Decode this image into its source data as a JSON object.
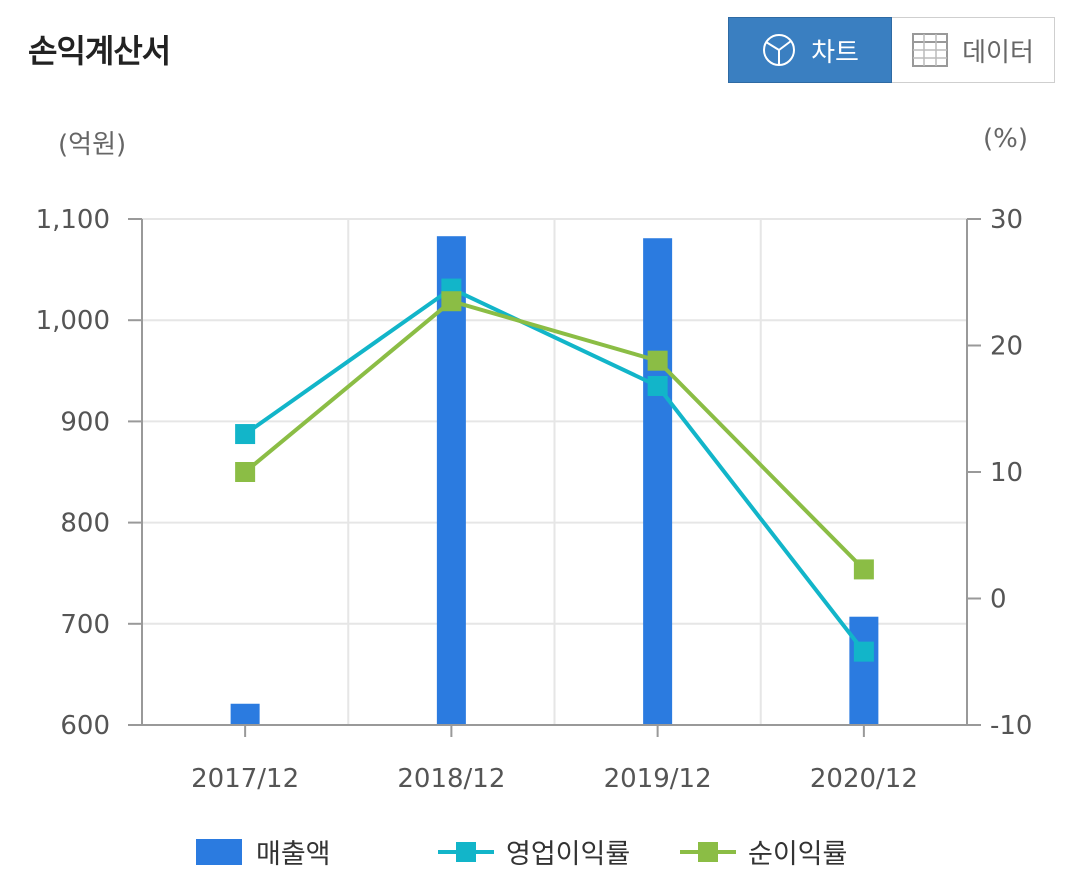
{
  "header": {
    "title": "손익계산서",
    "chart_button_label": "차트",
    "data_button_label": "데이터"
  },
  "units": {
    "left": "(억원)",
    "right": "(%)"
  },
  "colors": {
    "bar": "#2b7be0",
    "operating_margin": "#12b5c9",
    "net_margin": "#8bbd45",
    "active_button": "#3a7fc1"
  },
  "icons": {
    "chart_button": "pie-chart-icon",
    "data_button": "table-icon"
  },
  "chart_data": {
    "type": "bar",
    "categories": [
      "2017/12",
      "2018/12",
      "2019/12",
      "2020/12"
    ],
    "series": [
      {
        "name": "매출액",
        "type": "bar",
        "axis": "left",
        "values": [
          621,
          1083,
          1081,
          707
        ]
      },
      {
        "name": "영업이익률",
        "type": "line",
        "axis": "right",
        "values": [
          13.0,
          24.5,
          16.8,
          -4.2
        ]
      },
      {
        "name": "순이익률",
        "type": "line",
        "axis": "right",
        "values": [
          10.0,
          23.5,
          18.8,
          2.3
        ]
      }
    ],
    "y_left": {
      "min": 600,
      "max": 1100,
      "ticks": [
        600,
        700,
        800,
        900,
        1000,
        1100
      ],
      "tick_labels": [
        "600",
        "700",
        "800",
        "900",
        "1,000",
        "1,100"
      ]
    },
    "y_right": {
      "min": -10,
      "max": 30,
      "ticks": [
        -10,
        0,
        10,
        20,
        30
      ],
      "tick_labels": [
        "-10",
        "0",
        "10",
        "20",
        "30"
      ]
    },
    "grid": true,
    "legend_position": "bottom"
  }
}
